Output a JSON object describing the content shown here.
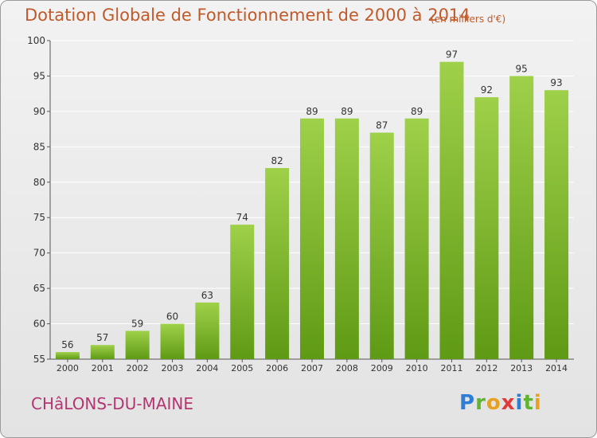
{
  "header": {
    "title": "Dotation Globale de Fonctionnement de 2000 à 2014",
    "unit": "(en milliers d'€)"
  },
  "footer": {
    "commune": "CHâLONS-DU-MAINE",
    "logo_letters": [
      "P",
      "r",
      "o",
      "x",
      "i",
      "t",
      "i"
    ]
  },
  "colors": {
    "title": "#c05a2a",
    "commune": "#b33571",
    "bar_top": "#9fd04a",
    "bar_bottom": "#5f9a15",
    "grid": "#ffffff",
    "axis": "#555555"
  },
  "chart_data": {
    "type": "bar",
    "title": "Dotation Globale de Fonctionnement de 2000 à 2014",
    "subtitle": "(en milliers d'€)",
    "xlabel": "",
    "ylabel": "",
    "categories": [
      "2000",
      "2001",
      "2002",
      "2003",
      "2004",
      "2005",
      "2006",
      "2007",
      "2008",
      "2009",
      "2010",
      "2011",
      "2012",
      "2013",
      "2014"
    ],
    "values": [
      56,
      57,
      59,
      60,
      63,
      74,
      82,
      89,
      89,
      87,
      89,
      97,
      92,
      95,
      93
    ],
    "data_labels": [
      "56",
      "57",
      "59",
      "60",
      "63",
      "74",
      "82",
      "89",
      "89",
      "87",
      "89",
      "97",
      "92",
      "95",
      "93"
    ],
    "ylim": [
      55,
      100
    ],
    "yticks": [
      55,
      60,
      65,
      70,
      75,
      80,
      85,
      90,
      95,
      100
    ],
    "grid": true,
    "legend": "none"
  }
}
